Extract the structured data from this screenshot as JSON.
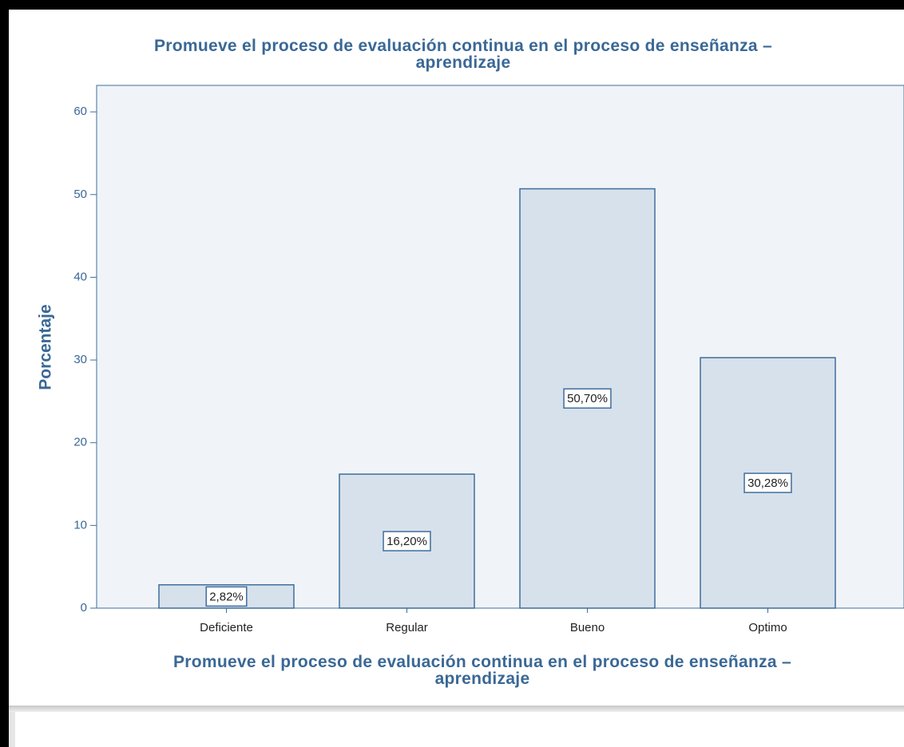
{
  "chart_data": {
    "type": "bar",
    "title": "Promueve el proceso de evaluación continua en el proceso de enseñanza –\naprendizaje",
    "x_label": "Promueve el proceso de evaluación continua en el proceso de enseñanza –\naprendizaje",
    "y_label": "Porcentaje",
    "categories": [
      "Deficiente",
      "Regular",
      "Bueno",
      "Optimo"
    ],
    "values": [
      2.82,
      16.2,
      50.7,
      30.28
    ],
    "value_labels": [
      "2,82%",
      "16,20%",
      "50,70%",
      "30,28%"
    ],
    "color": "#d7e1ec",
    "ylim": [
      0,
      63.2
    ],
    "yticks": [
      0,
      10,
      20,
      30,
      40,
      50,
      60
    ],
    "grid": false
  }
}
